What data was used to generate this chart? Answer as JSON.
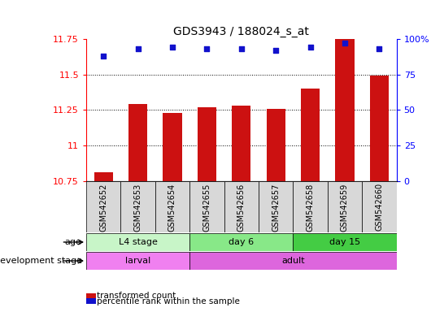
{
  "title": "GDS3943 / 188024_s_at",
  "samples": [
    "GSM542652",
    "GSM542653",
    "GSM542654",
    "GSM542655",
    "GSM542656",
    "GSM542657",
    "GSM542658",
    "GSM542659",
    "GSM542660"
  ],
  "transformed_counts": [
    10.81,
    11.29,
    11.23,
    11.27,
    11.28,
    11.26,
    11.4,
    11.75,
    11.49
  ],
  "percentile_ranks": [
    88,
    93,
    94,
    93,
    93,
    92,
    94,
    97,
    93
  ],
  "ylim_left": [
    10.75,
    11.75
  ],
  "ylim_right": [
    0,
    100
  ],
  "yticks_left": [
    10.75,
    11.0,
    11.25,
    11.5,
    11.75
  ],
  "yticks_right": [
    0,
    25,
    50,
    75,
    100
  ],
  "ytick_labels_left": [
    "10.75",
    "11",
    "11.25",
    "11.5",
    "11.75"
  ],
  "ytick_labels_right": [
    "0",
    "25",
    "50",
    "75",
    "100%"
  ],
  "age_groups": [
    {
      "label": "L4 stage",
      "start": 0,
      "end": 3,
      "color": "#c8f5c8"
    },
    {
      "label": "day 6",
      "start": 3,
      "end": 6,
      "color": "#88e888"
    },
    {
      "label": "day 15",
      "start": 6,
      "end": 9,
      "color": "#44cc44"
    }
  ],
  "dev_groups": [
    {
      "label": "larval",
      "start": 0,
      "end": 3,
      "color": "#f080f0"
    },
    {
      "label": "adult",
      "start": 3,
      "end": 9,
      "color": "#dd66dd"
    }
  ],
  "bar_color": "#cc1111",
  "dot_color": "#1111cc",
  "bar_base": 10.75,
  "legend_items": [
    {
      "color": "#cc1111",
      "label": "transformed count"
    },
    {
      "color": "#1111cc",
      "label": "percentile rank within the sample"
    }
  ],
  "background_color": "#ffffff",
  "sample_box_color": "#d8d8d8"
}
